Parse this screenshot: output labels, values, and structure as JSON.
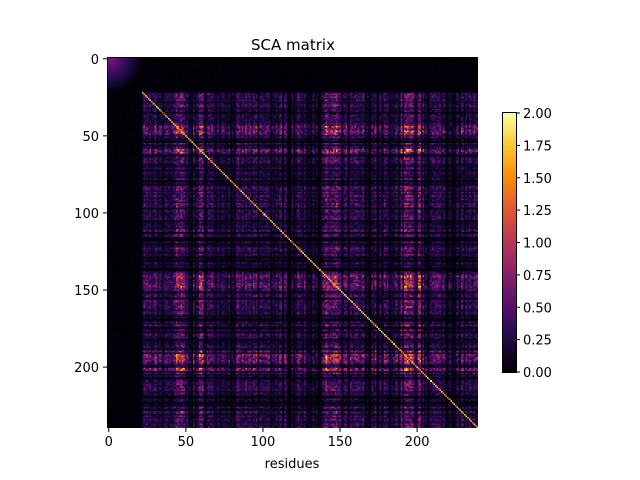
{
  "chart_data": {
    "type": "heatmap",
    "title": "SCA matrix",
    "xlabel": "residues",
    "ylabel": "",
    "matrix_size": [
      240,
      240
    ],
    "colormap": "inferno",
    "clim": [
      0,
      2
    ],
    "x_ticks": [
      0,
      50,
      100,
      150,
      200
    ],
    "y_ticks": [
      0,
      50,
      100,
      150,
      200
    ],
    "colorbar_ticks": [
      "0.00",
      "0.25",
      "0.50",
      "0.75",
      "1.00",
      "1.25",
      "1.50",
      "1.75",
      "2.00"
    ],
    "colorbar_values": [
      0,
      0.25,
      0.5,
      0.75,
      1.0,
      1.25,
      1.5,
      1.75,
      2.0
    ],
    "grid": false
  }
}
